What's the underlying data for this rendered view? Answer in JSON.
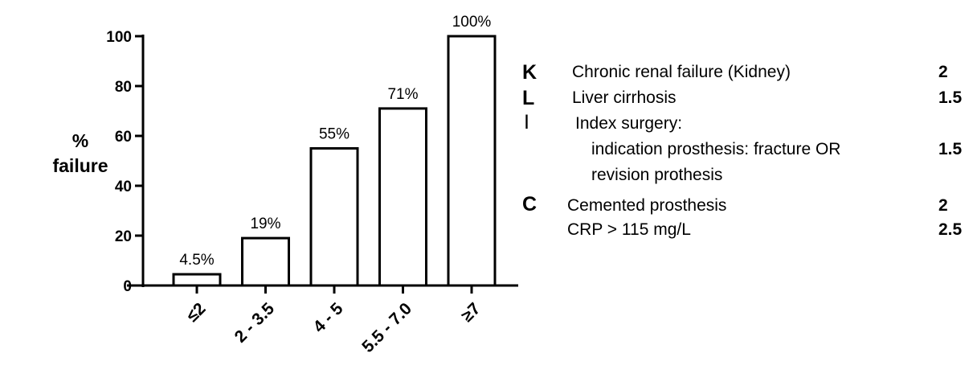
{
  "chart_data": {
    "type": "bar",
    "categories": [
      "≤2",
      "2 - 3.5",
      "4 - 5",
      "5.5 - 7.0",
      "≥7"
    ],
    "values": [
      4.5,
      19,
      55,
      71,
      100
    ],
    "data_labels": [
      "4.5%",
      "19%",
      "55%",
      "71%",
      "100%"
    ],
    "ylabel": [
      "%",
      "failure"
    ],
    "ylim": [
      0,
      100
    ],
    "yticks": [
      0,
      20,
      40,
      60,
      80,
      100
    ],
    "grid": false
  },
  "legend": {
    "rows": [
      {
        "letter": "K",
        "text": "Chronic renal failure (Kidney)",
        "value": "2"
      },
      {
        "letter": "L",
        "text": "Liver cirrhosis",
        "value": "1.5"
      },
      {
        "letter": "I",
        "text": "Index surgery:",
        "value": ""
      },
      {
        "letter": "",
        "text": "indication prosthesis: fracture OR",
        "value": "1.5"
      },
      {
        "letter": "",
        "text": "revision prothesis",
        "value": ""
      },
      {
        "letter": "C",
        "text": "Cemented prosthesis",
        "value": "2"
      },
      {
        "letter": "",
        "text": "CRP > 115 mg/L",
        "value": "2.5"
      }
    ]
  }
}
